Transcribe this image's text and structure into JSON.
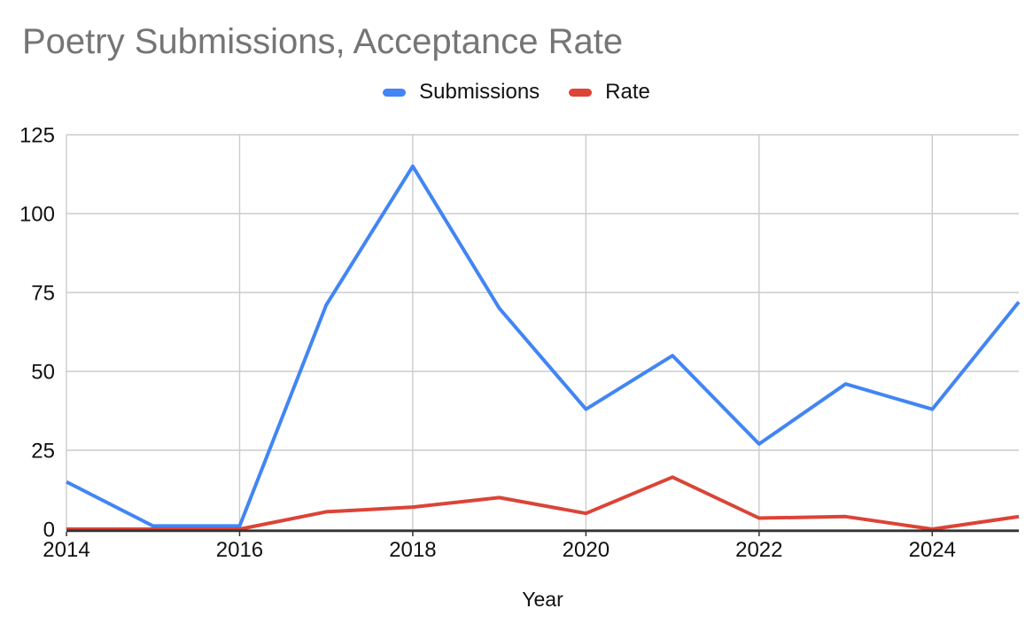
{
  "chart_data": {
    "type": "line",
    "title": "Poetry Submissions, Acceptance Rate",
    "xlabel": "Year",
    "ylabel": "",
    "x": [
      2014,
      2015,
      2016,
      2017,
      2018,
      2019,
      2020,
      2021,
      2022,
      2023,
      2024,
      2025
    ],
    "series": [
      {
        "name": "Submissions",
        "color": "#4285F4",
        "values": [
          15,
          1,
          1,
          71,
          115,
          70,
          38,
          55,
          27,
          46,
          38,
          72
        ]
      },
      {
        "name": "Rate",
        "color": "#DB4437",
        "values": [
          0,
          0,
          0,
          5.5,
          7,
          10,
          5,
          16.5,
          3.5,
          4,
          0,
          4
        ]
      }
    ],
    "ylim": [
      0,
      125
    ],
    "yticks": [
      0,
      25,
      50,
      75,
      100,
      125
    ],
    "xticks": [
      2014,
      2016,
      2018,
      2020,
      2022,
      2024
    ],
    "grid": true,
    "legend_position": "top"
  },
  "colors": {
    "title_text": "#757575",
    "axis_text": "#111111",
    "gridline": "#cccccc",
    "axis_line": "#333333",
    "background": "#ffffff"
  }
}
